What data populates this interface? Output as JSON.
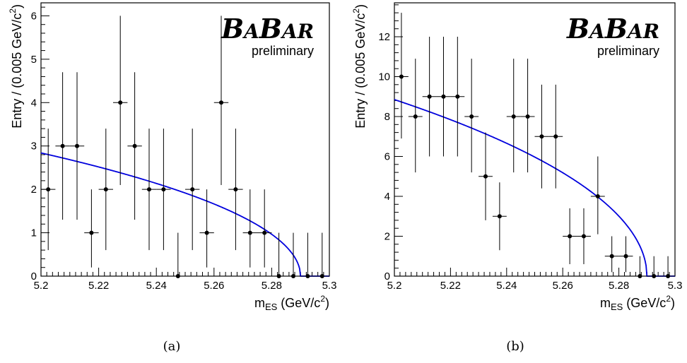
{
  "charts": [
    {
      "caption": "(a)",
      "logo": {
        "b1": "B",
        "a1": "A",
        "b2": "B",
        "a2": "AR",
        "sub": "preliminary"
      },
      "chart_data": {
        "type": "scatter",
        "xlabel_main": "m",
        "xlabel_sub": "ES",
        "xlabel_unit": " (GeV/c",
        "xlabel_sup": "2",
        "xlabel_close": ")",
        "ylabel_main": "Entry / (0.005 GeV/c",
        "ylabel_sup": "2",
        "ylabel_close": ")",
        "xlim": [
          5.2,
          5.3
        ],
        "ylim": [
          0,
          6.3
        ],
        "xticks": [
          "5.2",
          "5.22",
          "5.24",
          "5.26",
          "5.28",
          "5.3"
        ],
        "yticks": [
          "0",
          "1",
          "2",
          "3",
          "4",
          "5",
          "6"
        ],
        "x": [
          5.2025,
          5.2075,
          5.2125,
          5.2175,
          5.2225,
          5.2275,
          5.2325,
          5.2375,
          5.2425,
          5.2475,
          5.2525,
          5.2575,
          5.2625,
          5.2675,
          5.2725,
          5.2775,
          5.2825,
          5.2875,
          5.2925,
          5.2975
        ],
        "y": [
          2,
          3,
          3,
          1,
          2,
          4,
          3,
          2,
          2,
          0,
          2,
          1,
          4,
          2,
          1,
          1,
          0,
          0,
          0,
          0
        ],
        "err_low": [
          1.4,
          1.7,
          1.7,
          0.8,
          1.4,
          1.9,
          1.7,
          1.4,
          1.4,
          0,
          1.4,
          0.8,
          1.9,
          1.4,
          0.8,
          0.8,
          0,
          0,
          0,
          0
        ],
        "err_high": [
          1.4,
          1.7,
          1.7,
          1.0,
          1.4,
          2.0,
          1.7,
          1.4,
          1.4,
          1.0,
          1.4,
          1.0,
          2.0,
          1.4,
          1.0,
          1.0,
          1.0,
          1.0,
          1.0,
          1.0
        ],
        "fit": {
          "type": "argus",
          "norm": 2.84,
          "endpoint": 5.29,
          "color": "#0000dd"
        }
      }
    },
    {
      "caption": "(b)",
      "logo": {
        "b1": "B",
        "a1": "A",
        "b2": "B",
        "a2": "AR",
        "sub": "preliminary"
      },
      "chart_data": {
        "type": "scatter",
        "xlabel_main": "m",
        "xlabel_sub": "ES",
        "xlabel_unit": " (GeV/c",
        "xlabel_sup": "2",
        "xlabel_close": ")",
        "ylabel_main": "Entry / (0.005 GeV/c",
        "ylabel_sup": "2",
        "ylabel_close": ")",
        "xlim": [
          5.2,
          5.3
        ],
        "ylim": [
          0,
          13.7
        ],
        "xticks": [
          "5.2",
          "5.22",
          "5.24",
          "5.26",
          "5.28",
          "5.3"
        ],
        "yticks": [
          "0",
          "2",
          "4",
          "6",
          "8",
          "10",
          "12"
        ],
        "x": [
          5.2025,
          5.2075,
          5.2125,
          5.2175,
          5.2225,
          5.2275,
          5.2325,
          5.2375,
          5.2425,
          5.2475,
          5.2525,
          5.2575,
          5.2625,
          5.2675,
          5.2725,
          5.2775,
          5.2825,
          5.2875,
          5.2925,
          5.2975
        ],
        "y": [
          10,
          8,
          9,
          9,
          9,
          8,
          5,
          3,
          8,
          8,
          7,
          7,
          2,
          2,
          4,
          1,
          1,
          0,
          0,
          0
        ],
        "err_low": [
          3.1,
          2.8,
          3.0,
          3.0,
          3.0,
          2.8,
          2.2,
          1.7,
          2.8,
          2.8,
          2.6,
          2.6,
          1.4,
          1.4,
          1.9,
          0.8,
          0.8,
          0,
          0,
          0
        ],
        "err_high": [
          3.2,
          2.9,
          3.0,
          3.0,
          3.0,
          2.9,
          2.2,
          1.7,
          2.9,
          2.9,
          2.6,
          2.6,
          1.4,
          1.4,
          2.0,
          1.0,
          1.0,
          1.0,
          1.0,
          1.0
        ],
        "fit": {
          "type": "argus",
          "norm": 8.85,
          "endpoint": 5.29,
          "color": "#0000dd"
        }
      }
    }
  ]
}
